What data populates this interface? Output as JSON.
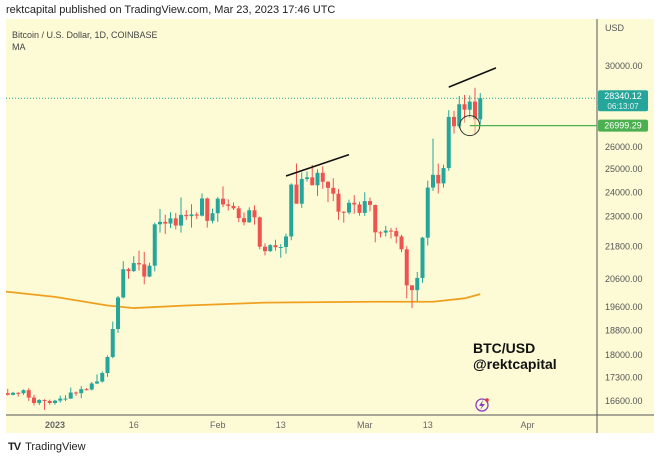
{
  "header": {
    "published": "rektcapital published on TradingView.com, Mar 23, 2023 17:46 UTC",
    "symbol": "Bitcoin / U.S. Dollar, 1D, COINBASE",
    "indicator": "MA"
  },
  "footer": {
    "brand": "TradingView",
    "logo": "TV"
  },
  "watermark": {
    "line1": "BTC/USD",
    "line2": "@rektcapital"
  },
  "colors": {
    "up": "#26a69a",
    "down": "#ef5350",
    "ma": "#f0a020",
    "support": "#4caf50",
    "background": "#fdfbd6"
  },
  "chart_data": {
    "type": "candlestick",
    "title": "Bitcoin / U.S. Dollar, 1D, COINBASE",
    "currency_label": "USD",
    "y_scale": "log",
    "ylim": [
      16200,
      33000
    ],
    "y_ticks": [
      "30000.00",
      "26000.00",
      "25000.00",
      "24000.00",
      "23000.00",
      "21800.00",
      "20600.00",
      "19600.00",
      "18800.00",
      "18000.00",
      "17300.00",
      "16600.00"
    ],
    "x_ticks": [
      {
        "label": "2023",
        "day": 10
      },
      {
        "label": "16",
        "day": 25
      },
      {
        "label": "Feb",
        "day": 41
      },
      {
        "label": "13",
        "day": 53
      },
      {
        "label": "Mar",
        "day": 69
      },
      {
        "label": "13",
        "day": 81
      },
      {
        "label": "Apr",
        "day": 100
      }
    ],
    "price_labels": {
      "last_price": "28340.12",
      "countdown": "06:13:07",
      "support_level": "26999.29"
    },
    "columns": [
      "open",
      "high",
      "low",
      "close"
    ],
    "first_date": "2022-12-22",
    "candles": [
      [
        16820,
        16860,
        16560,
        16830
      ],
      [
        16830,
        16960,
        16760,
        16780
      ],
      [
        16780,
        16870,
        16770,
        16840
      ],
      [
        16840,
        16860,
        16730,
        16830
      ],
      [
        16830,
        16940,
        16780,
        16920
      ],
      [
        16920,
        16980,
        16600,
        16700
      ],
      [
        16700,
        16780,
        16470,
        16540
      ],
      [
        16540,
        16650,
        16480,
        16630
      ],
      [
        16630,
        16650,
        16340,
        16600
      ],
      [
        16600,
        16640,
        16490,
        16540
      ],
      [
        16540,
        16630,
        16490,
        16610
      ],
      [
        16610,
        16760,
        16550,
        16670
      ],
      [
        16670,
        16770,
        16600,
        16670
      ],
      [
        16670,
        17000,
        16660,
        16850
      ],
      [
        16850,
        16880,
        16750,
        16830
      ],
      [
        16830,
        17040,
        16680,
        16950
      ],
      [
        16950,
        16980,
        16910,
        16940
      ],
      [
        16940,
        17170,
        16910,
        17120
      ],
      [
        17120,
        17400,
        17100,
        17180
      ],
      [
        17180,
        17490,
        17150,
        17440
      ],
      [
        17440,
        17990,
        17320,
        17940
      ],
      [
        17940,
        19100,
        17900,
        18850
      ],
      [
        18850,
        19980,
        18720,
        19930
      ],
      [
        19930,
        21250,
        19900,
        20950
      ],
      [
        20950,
        21000,
        20600,
        20880
      ],
      [
        20880,
        21440,
        20850,
        21180
      ],
      [
        21180,
        21650,
        20900,
        21130
      ],
      [
        21130,
        21600,
        20400,
        20680
      ],
      [
        20680,
        21190,
        20660,
        21080
      ],
      [
        21080,
        22750,
        20870,
        22680
      ],
      [
        22680,
        23300,
        22350,
        22780
      ],
      [
        22780,
        23070,
        22300,
        22710
      ],
      [
        22710,
        23170,
        22530,
        22920
      ],
      [
        22920,
        23140,
        22480,
        22630
      ],
      [
        22630,
        23780,
        22350,
        23060
      ],
      [
        23060,
        23260,
        22860,
        23010
      ],
      [
        23010,
        23500,
        22550,
        23080
      ],
      [
        23080,
        23170,
        22890,
        23030
      ],
      [
        23030,
        23950,
        23000,
        23740
      ],
      [
        23740,
        23780,
        22550,
        22820
      ],
      [
        22820,
        23320,
        22720,
        23130
      ],
      [
        23130,
        23800,
        22780,
        23730
      ],
      [
        23730,
        24250,
        23380,
        23490
      ],
      [
        23490,
        23700,
        23240,
        23430
      ],
      [
        23430,
        23570,
        23260,
        23330
      ],
      [
        23330,
        23430,
        22770,
        22930
      ],
      [
        22930,
        23160,
        22640,
        22760
      ],
      [
        22760,
        23370,
        22740,
        23250
      ],
      [
        23250,
        23450,
        22670,
        22960
      ],
      [
        22960,
        23000,
        21700,
        21800
      ],
      [
        21800,
        21930,
        21470,
        21630
      ],
      [
        21630,
        21900,
        21600,
        21860
      ],
      [
        21860,
        22070,
        21650,
        21780
      ],
      [
        21780,
        21900,
        21380,
        21790
      ],
      [
        21790,
        22310,
        21530,
        22200
      ],
      [
        22200,
        24380,
        22050,
        24330
      ],
      [
        24330,
        25250,
        23520,
        23520
      ],
      [
        23520,
        24860,
        23350,
        24570
      ],
      [
        24570,
        24900,
        24460,
        24640
      ],
      [
        24640,
        25190,
        24300,
        24300
      ],
      [
        24300,
        25000,
        23850,
        24840
      ],
      [
        24840,
        25130,
        24150,
        24450
      ],
      [
        24450,
        24480,
        23580,
        24190
      ],
      [
        24190,
        24600,
        23630,
        23940
      ],
      [
        23940,
        24140,
        22860,
        23190
      ],
      [
        23190,
        23210,
        22750,
        23160
      ],
      [
        23160,
        23690,
        23080,
        23560
      ],
      [
        23560,
        23880,
        23110,
        23490
      ],
      [
        23490,
        23600,
        23030,
        23140
      ],
      [
        23140,
        24000,
        23020,
        23630
      ],
      [
        23630,
        23780,
        23210,
        23470
      ],
      [
        23470,
        23480,
        21970,
        22360
      ],
      [
        22360,
        22410,
        22160,
        22350
      ],
      [
        22350,
        22620,
        22200,
        22430
      ],
      [
        22430,
        22540,
        22120,
        22410
      ],
      [
        22410,
        22550,
        21930,
        22200
      ],
      [
        22200,
        22270,
        21590,
        21700
      ],
      [
        21700,
        21820,
        19900,
        20360
      ],
      [
        20360,
        20370,
        19560,
        20190
      ],
      [
        20190,
        20850,
        19800,
        20630
      ],
      [
        20630,
        22180,
        20450,
        22150
      ],
      [
        22150,
        24500,
        21850,
        24200
      ],
      [
        24200,
        26390,
        24060,
        24750
      ],
      [
        24750,
        25250,
        23950,
        24380
      ],
      [
        24380,
        25200,
        24200,
        25050
      ],
      [
        25050,
        27750,
        24930,
        27420
      ],
      [
        27420,
        27720,
        26620,
        26970
      ],
      [
        26970,
        28450,
        26870,
        28040
      ],
      [
        28040,
        28500,
        27150,
        27770
      ],
      [
        27770,
        28480,
        27370,
        28170
      ],
      [
        28170,
        28870,
        26620,
        27300
      ],
      [
        27300,
        28600,
        27050,
        28340
      ]
    ],
    "ma_series": [
      [
        0,
        20150
      ],
      [
        10,
        19950
      ],
      [
        20,
        19650
      ],
      [
        25,
        19560
      ],
      [
        35,
        19650
      ],
      [
        50,
        19750
      ],
      [
        70,
        19780
      ],
      [
        82,
        19780
      ],
      [
        88,
        19900
      ],
      [
        91,
        20050
      ]
    ],
    "annotations": {
      "trendlines": [
        [
          [
            54,
            24700
          ],
          [
            66,
            25650
          ]
        ],
        [
          [
            85,
            28900
          ],
          [
            94,
            29900
          ]
        ]
      ],
      "circle": {
        "day": 89,
        "price": 27000
      },
      "support_line": 26999.29
    }
  }
}
